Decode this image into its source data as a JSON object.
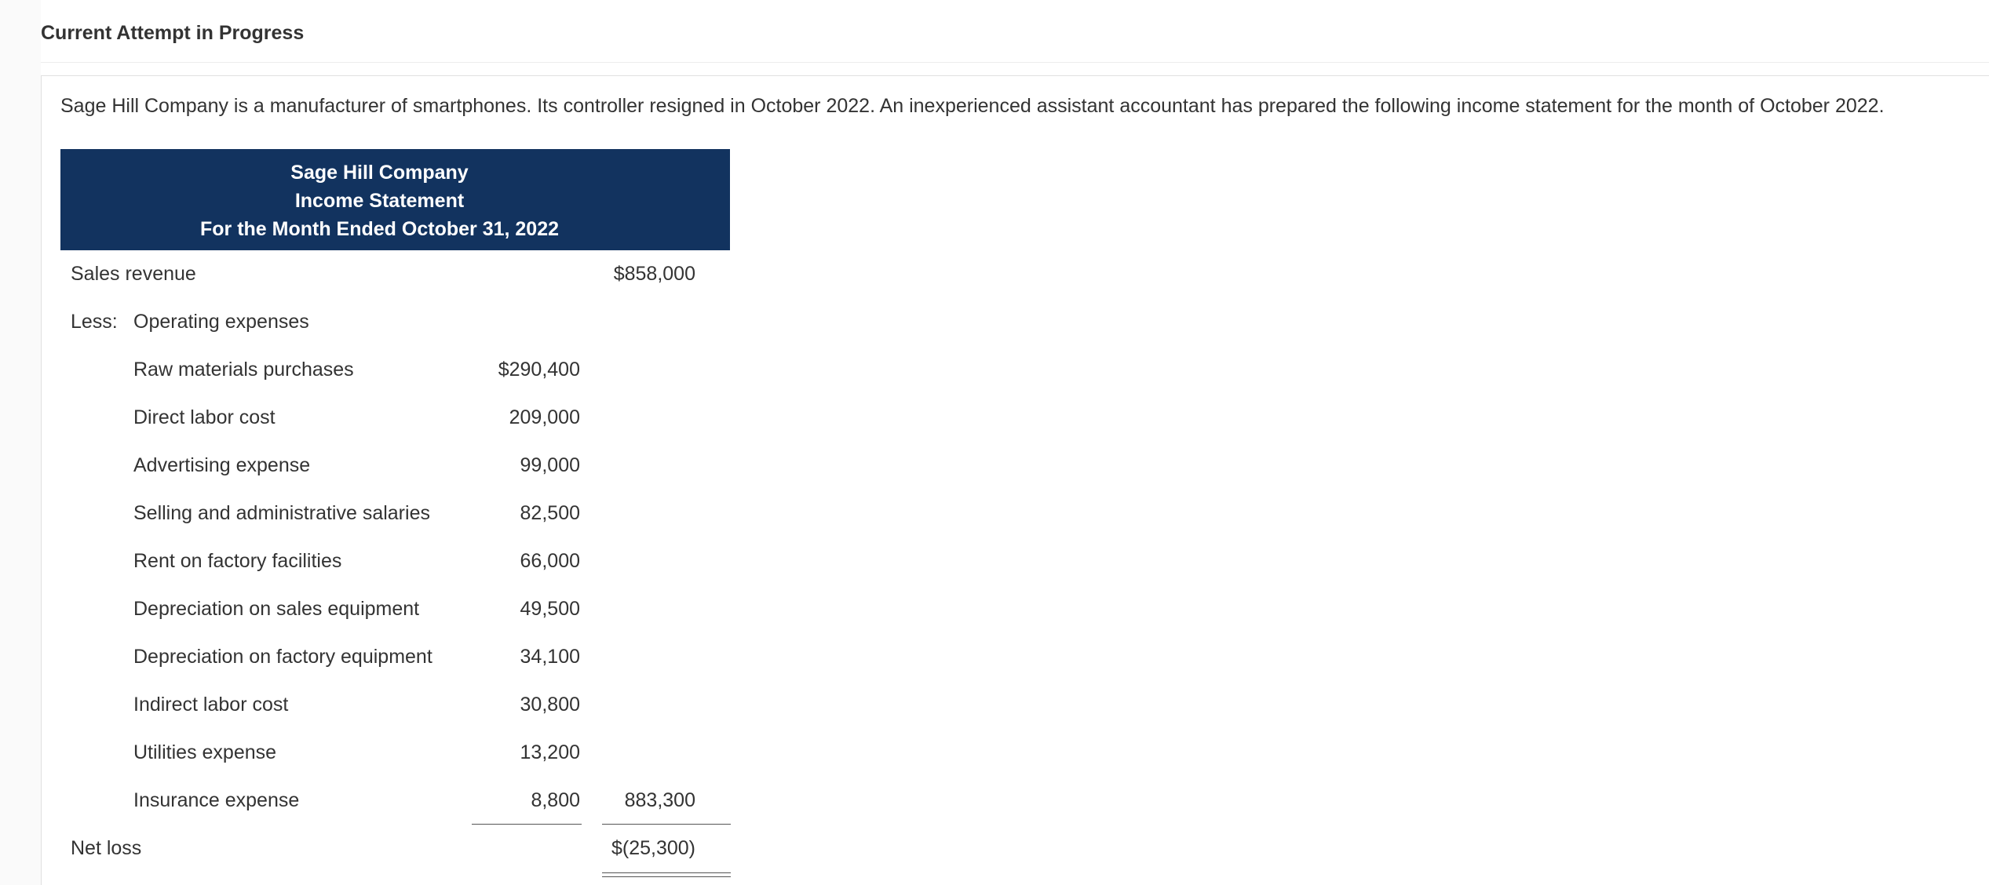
{
  "header": {
    "attempt_title": "Current Attempt in Progress"
  },
  "question": {
    "prompt": "Sage Hill Company is a manufacturer of smartphones. Its controller resigned in October 2022. An inexperienced assistant accountant has prepared the following income statement for the month of October 2022."
  },
  "statement": {
    "company": "Sage Hill Company",
    "title": "Income Statement",
    "period": "For the Month Ended October 31, 2022",
    "sales_revenue": {
      "label": "Sales revenue",
      "amount": "$858,000"
    },
    "less_word": "Less:",
    "operating_expenses_label": "Operating expenses",
    "expenses": [
      {
        "label": "Raw materials purchases",
        "amount": "$290,400"
      },
      {
        "label": "Direct labor cost",
        "amount": "209,000"
      },
      {
        "label": "Advertising expense",
        "amount": "99,000"
      },
      {
        "label": "Selling and administrative salaries",
        "amount": "82,500"
      },
      {
        "label": "Rent on factory facilities",
        "amount": "66,000"
      },
      {
        "label": "Depreciation on sales equipment",
        "amount": "49,500"
      },
      {
        "label": "Depreciation on factory equipment",
        "amount": "34,100"
      },
      {
        "label": "Indirect labor cost",
        "amount": "30,800"
      },
      {
        "label": "Utilities expense",
        "amount": "13,200"
      },
      {
        "label": "Insurance expense",
        "amount": "8,800"
      }
    ],
    "total_expenses": "883,300",
    "net_loss": {
      "label": "Net loss",
      "amount": "$(25,300)"
    }
  }
}
